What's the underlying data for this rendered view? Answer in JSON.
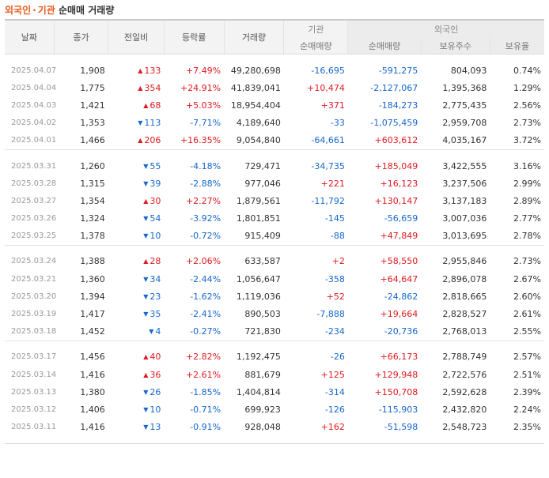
{
  "title": {
    "part1": "외국인",
    "sep": "·",
    "part2": "기관",
    "part3": "순매매 거래량"
  },
  "headers": {
    "date": "날짜",
    "close": "종가",
    "change": "전일비",
    "rate": "등락률",
    "volume": "거래량",
    "inst_group": "기관",
    "foreign_group": "외국인",
    "inst_net": "순매매량",
    "foreign_net": "순매매량",
    "holdings": "보유주수",
    "ratio": "보유율"
  },
  "colors": {
    "up": "#e0191f",
    "down": "#1667cc",
    "accent": "#e8581a"
  },
  "groups": [
    [
      {
        "date": "2025.04.07",
        "close": "1,908",
        "dir": "up",
        "change": "133",
        "rate": "+7.49%",
        "volume": "49,280,698",
        "inst": "-16,695",
        "foreign": "-591,275",
        "holdings": "804,093",
        "ratio": "0.74%"
      },
      {
        "date": "2025.04.04",
        "close": "1,775",
        "dir": "up",
        "change": "354",
        "rate": "+24.91%",
        "volume": "41,839,041",
        "inst": "+10,474",
        "foreign": "-2,127,067",
        "holdings": "1,395,368",
        "ratio": "1.29%"
      },
      {
        "date": "2025.04.03",
        "close": "1,421",
        "dir": "up",
        "change": "68",
        "rate": "+5.03%",
        "volume": "18,954,404",
        "inst": "+371",
        "foreign": "-184,273",
        "holdings": "2,775,435",
        "ratio": "2.56%"
      },
      {
        "date": "2025.04.02",
        "close": "1,353",
        "dir": "down",
        "change": "113",
        "rate": "-7.71%",
        "volume": "4,189,640",
        "inst": "-33",
        "foreign": "-1,075,459",
        "holdings": "2,959,708",
        "ratio": "2.73%"
      },
      {
        "date": "2025.04.01",
        "close": "1,466",
        "dir": "up",
        "change": "206",
        "rate": "+16.35%",
        "volume": "9,054,840",
        "inst": "-64,661",
        "foreign": "+603,612",
        "holdings": "4,035,167",
        "ratio": "3.72%"
      }
    ],
    [
      {
        "date": "2025.03.31",
        "close": "1,260",
        "dir": "down",
        "change": "55",
        "rate": "-4.18%",
        "volume": "729,471",
        "inst": "-34,735",
        "foreign": "+185,049",
        "holdings": "3,422,555",
        "ratio": "3.16%"
      },
      {
        "date": "2025.03.28",
        "close": "1,315",
        "dir": "down",
        "change": "39",
        "rate": "-2.88%",
        "volume": "977,046",
        "inst": "+221",
        "foreign": "+16,123",
        "holdings": "3,237,506",
        "ratio": "2.99%"
      },
      {
        "date": "2025.03.27",
        "close": "1,354",
        "dir": "up",
        "change": "30",
        "rate": "+2.27%",
        "volume": "1,879,561",
        "inst": "-11,792",
        "foreign": "+130,147",
        "holdings": "3,137,183",
        "ratio": "2.89%"
      },
      {
        "date": "2025.03.26",
        "close": "1,324",
        "dir": "down",
        "change": "54",
        "rate": "-3.92%",
        "volume": "1,801,851",
        "inst": "-145",
        "foreign": "-56,659",
        "holdings": "3,007,036",
        "ratio": "2.77%"
      },
      {
        "date": "2025.03.25",
        "close": "1,378",
        "dir": "down",
        "change": "10",
        "rate": "-0.72%",
        "volume": "915,409",
        "inst": "-88",
        "foreign": "+47,849",
        "holdings": "3,013,695",
        "ratio": "2.78%"
      }
    ],
    [
      {
        "date": "2025.03.24",
        "close": "1,388",
        "dir": "up",
        "change": "28",
        "rate": "+2.06%",
        "volume": "633,587",
        "inst": "+2",
        "foreign": "+58,550",
        "holdings": "2,955,846",
        "ratio": "2.73%"
      },
      {
        "date": "2025.03.21",
        "close": "1,360",
        "dir": "down",
        "change": "34",
        "rate": "-2.44%",
        "volume": "1,056,647",
        "inst": "-358",
        "foreign": "+64,647",
        "holdings": "2,896,078",
        "ratio": "2.67%"
      },
      {
        "date": "2025.03.20",
        "close": "1,394",
        "dir": "down",
        "change": "23",
        "rate": "-1.62%",
        "volume": "1,119,036",
        "inst": "+52",
        "foreign": "-24,862",
        "holdings": "2,818,665",
        "ratio": "2.60%"
      },
      {
        "date": "2025.03.19",
        "close": "1,417",
        "dir": "down",
        "change": "35",
        "rate": "-2.41%",
        "volume": "890,503",
        "inst": "-7,888",
        "foreign": "+19,664",
        "holdings": "2,828,527",
        "ratio": "2.61%"
      },
      {
        "date": "2025.03.18",
        "close": "1,452",
        "dir": "down",
        "change": "4",
        "rate": "-0.27%",
        "volume": "721,830",
        "inst": "-234",
        "foreign": "-20,736",
        "holdings": "2,768,013",
        "ratio": "2.55%"
      }
    ],
    [
      {
        "date": "2025.03.17",
        "close": "1,456",
        "dir": "up",
        "change": "40",
        "rate": "+2.82%",
        "volume": "1,192,475",
        "inst": "-26",
        "foreign": "+66,173",
        "holdings": "2,788,749",
        "ratio": "2.57%"
      },
      {
        "date": "2025.03.14",
        "close": "1,416",
        "dir": "up",
        "change": "36",
        "rate": "+2.61%",
        "volume": "881,679",
        "inst": "+125",
        "foreign": "+129,948",
        "holdings": "2,722,576",
        "ratio": "2.51%"
      },
      {
        "date": "2025.03.13",
        "close": "1,380",
        "dir": "down",
        "change": "26",
        "rate": "-1.85%",
        "volume": "1,404,814",
        "inst": "-314",
        "foreign": "+150,708",
        "holdings": "2,592,628",
        "ratio": "2.39%"
      },
      {
        "date": "2025.03.12",
        "close": "1,406",
        "dir": "down",
        "change": "10",
        "rate": "-0.71%",
        "volume": "699,923",
        "inst": "-126",
        "foreign": "-115,903",
        "holdings": "2,432,820",
        "ratio": "2.24%"
      },
      {
        "date": "2025.03.11",
        "close": "1,416",
        "dir": "down",
        "change": "13",
        "rate": "-0.91%",
        "volume": "928,048",
        "inst": "+162",
        "foreign": "-51,598",
        "holdings": "2,548,723",
        "ratio": "2.35%"
      }
    ]
  ]
}
